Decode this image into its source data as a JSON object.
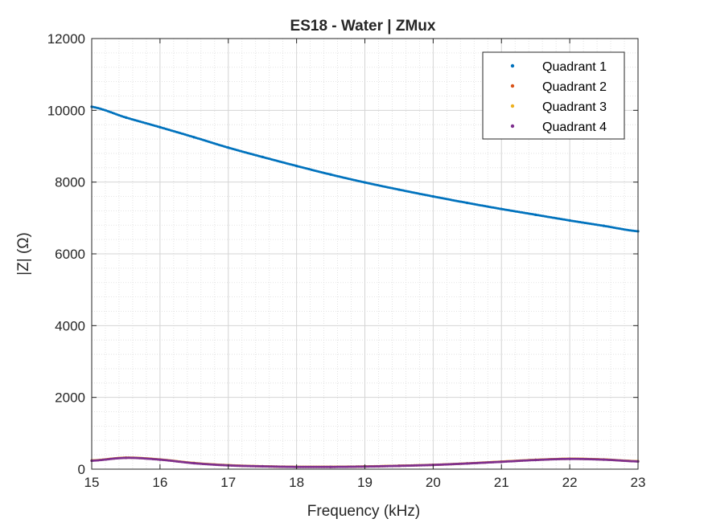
{
  "chart_data": {
    "type": "scatter",
    "title": "ES18 - Water | ZMux",
    "xlabel": "Frequency (kHz)",
    "ylabel": "|Z| (Ω)",
    "xlim": [
      15,
      23
    ],
    "ylim": [
      0,
      12000
    ],
    "xticks": [
      15,
      16,
      17,
      18,
      19,
      20,
      21,
      22,
      23
    ],
    "yticks": [
      0,
      2000,
      4000,
      6000,
      8000,
      10000,
      12000
    ],
    "grid": true,
    "minor_grid": true,
    "legend": "top-right",
    "x": [
      15.0,
      15.5,
      16.0,
      16.5,
      17.0,
      17.5,
      18.0,
      18.5,
      19.0,
      19.5,
      20.0,
      20.5,
      21.0,
      21.5,
      22.0,
      22.5,
      23.0
    ],
    "series": [
      {
        "name": "Quadrant 1",
        "color": "#0072BD",
        "values": [
          10100,
          9800,
          9530,
          9250,
          8960,
          8700,
          8450,
          8210,
          7990,
          7790,
          7600,
          7420,
          7250,
          7090,
          6930,
          6780,
          6630
        ]
      },
      {
        "name": "Quadrant 2",
        "color": "#D95319",
        "values": [
          240,
          320,
          270,
          170,
          110,
          80,
          65,
          65,
          75,
          95,
          120,
          160,
          210,
          260,
          290,
          270,
          220
        ]
      },
      {
        "name": "Quadrant 3",
        "color": "#EDB120",
        "values": [
          240,
          320,
          270,
          170,
          110,
          80,
          65,
          65,
          75,
          95,
          120,
          160,
          210,
          260,
          290,
          270,
          220
        ]
      },
      {
        "name": "Quadrant 4",
        "color": "#7E2F8E",
        "values": [
          235,
          315,
          265,
          165,
          105,
          78,
          62,
          62,
          72,
          92,
          118,
          158,
          205,
          255,
          285,
          265,
          215
        ]
      }
    ]
  }
}
